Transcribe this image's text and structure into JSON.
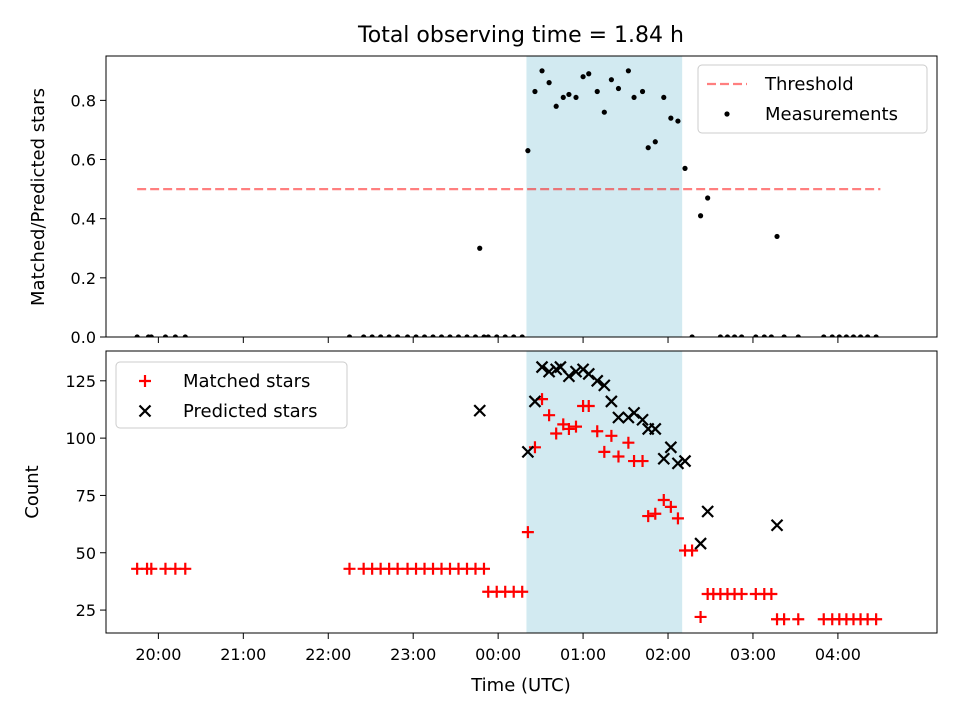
{
  "figure": {
    "title": "Total observing time = 1.84 h",
    "xlabel": "Time (UTC)",
    "x_ticks": [
      "20:00",
      "21:00",
      "22:00",
      "23:00",
      "00:00",
      "01:00",
      "02:00",
      "03:00",
      "04:00"
    ],
    "observing_window": {
      "start": "00:20",
      "end": "02:10",
      "color": "#add8e6"
    }
  },
  "chart_data": [
    {
      "type": "scatter",
      "ylabel": "Matched/Predicted stars",
      "ylim": [
        0,
        0.95
      ],
      "y_ticks": [
        "0.0",
        "0.2",
        "0.4",
        "0.6",
        "0.8"
      ],
      "legend_position": "upper right",
      "threshold": {
        "name": "Threshold",
        "value": 0.5,
        "x_range": [
          "19:45",
          "04:30"
        ],
        "color": "#ff0000",
        "alpha": 0.5,
        "style": "dashed"
      },
      "series": [
        {
          "name": "Measurements",
          "color": "#000000",
          "marker": "dot",
          "points": [
            [
              "19:45",
              0
            ],
            [
              "19:53",
              0
            ],
            [
              "19:55",
              0
            ],
            [
              "20:05",
              0
            ],
            [
              "20:12",
              0
            ],
            [
              "20:19",
              0
            ],
            [
              "22:15",
              0
            ],
            [
              "22:25",
              0
            ],
            [
              "22:31",
              0
            ],
            [
              "22:37",
              0
            ],
            [
              "22:43",
              0
            ],
            [
              "22:49",
              0
            ],
            [
              "22:56",
              0
            ],
            [
              "23:02",
              0
            ],
            [
              "23:08",
              0
            ],
            [
              "23:14",
              0
            ],
            [
              "23:20",
              0
            ],
            [
              "23:26",
              0
            ],
            [
              "23:32",
              0
            ],
            [
              "23:38",
              0
            ],
            [
              "23:44",
              0
            ],
            [
              "23:50",
              0
            ],
            [
              "23:47",
              0.3
            ],
            [
              "23:53",
              0
            ],
            [
              "23:59",
              0
            ],
            [
              "00:05",
              0
            ],
            [
              "00:11",
              0
            ],
            [
              "00:17",
              0
            ],
            [
              "00:21",
              0.63
            ],
            [
              "00:26",
              0.83
            ],
            [
              "00:31",
              0.9
            ],
            [
              "00:36",
              0.86
            ],
            [
              "00:41",
              0.78
            ],
            [
              "00:46",
              0.81
            ],
            [
              "00:50",
              0.82
            ],
            [
              "00:55",
              0.81
            ],
            [
              "01:00",
              0.88
            ],
            [
              "01:04",
              0.89
            ],
            [
              "01:10",
              0.83
            ],
            [
              "01:15",
              0.76
            ],
            [
              "01:20",
              0.87
            ],
            [
              "01:25",
              0.84
            ],
            [
              "01:32",
              0.9
            ],
            [
              "01:36",
              0.81
            ],
            [
              "01:42",
              0.83
            ],
            [
              "01:46",
              0.64
            ],
            [
              "01:51",
              0.66
            ],
            [
              "01:57",
              0.81
            ],
            [
              "02:02",
              0.74
            ],
            [
              "02:07",
              0.73
            ],
            [
              "02:12",
              0.57
            ],
            [
              "02:17",
              0
            ],
            [
              "02:23",
              0.41
            ],
            [
              "02:28",
              0.47
            ],
            [
              "02:37",
              0
            ],
            [
              "02:42",
              0
            ],
            [
              "02:47",
              0
            ],
            [
              "02:52",
              0
            ],
            [
              "03:02",
              0
            ],
            [
              "03:08",
              0
            ],
            [
              "03:13",
              0
            ],
            [
              "03:17",
              0.34
            ],
            [
              "03:22",
              0
            ],
            [
              "03:32",
              0
            ],
            [
              "03:50",
              0
            ],
            [
              "03:56",
              0
            ],
            [
              "04:01",
              0
            ],
            [
              "04:06",
              0
            ],
            [
              "04:11",
              0
            ],
            [
              "04:16",
              0
            ],
            [
              "04:21",
              0
            ],
            [
              "04:27",
              0
            ]
          ]
        }
      ]
    },
    {
      "type": "scatter",
      "ylabel": "Count",
      "ylim": [
        15,
        138
      ],
      "y_ticks": [
        "25",
        "50",
        "75",
        "100",
        "125"
      ],
      "legend_position": "upper left",
      "series": [
        {
          "name": "Matched stars",
          "color": "#ff0000",
          "marker": "plus",
          "points": [
            [
              "19:45",
              43
            ],
            [
              "19:52",
              43
            ],
            [
              "19:55",
              43
            ],
            [
              "20:05",
              43
            ],
            [
              "20:12",
              43
            ],
            [
              "20:19",
              43
            ],
            [
              "22:15",
              43
            ],
            [
              "22:25",
              43
            ],
            [
              "22:31",
              43
            ],
            [
              "22:37",
              43
            ],
            [
              "22:43",
              43
            ],
            [
              "22:49",
              43
            ],
            [
              "22:56",
              43
            ],
            [
              "23:02",
              43
            ],
            [
              "23:08",
              43
            ],
            [
              "23:14",
              43
            ],
            [
              "23:20",
              43
            ],
            [
              "23:26",
              43
            ],
            [
              "23:32",
              43
            ],
            [
              "23:38",
              43
            ],
            [
              "23:44",
              43
            ],
            [
              "23:50",
              43
            ],
            [
              "23:53",
              33
            ],
            [
              "23:59",
              33
            ],
            [
              "00:05",
              33
            ],
            [
              "00:11",
              33
            ],
            [
              "00:17",
              33
            ],
            [
              "00:21",
              59
            ],
            [
              "00:26",
              96
            ],
            [
              "00:31",
              117
            ],
            [
              "00:36",
              110
            ],
            [
              "00:41",
              102
            ],
            [
              "00:46",
              106
            ],
            [
              "00:50",
              104
            ],
            [
              "00:55",
              105
            ],
            [
              "01:00",
              114
            ],
            [
              "01:04",
              114
            ],
            [
              "01:10",
              103
            ],
            [
              "01:15",
              94
            ],
            [
              "01:20",
              101
            ],
            [
              "01:25",
              92
            ],
            [
              "01:32",
              98
            ],
            [
              "01:36",
              90
            ],
            [
              "01:42",
              90
            ],
            [
              "01:46",
              66
            ],
            [
              "01:51",
              67
            ],
            [
              "01:57",
              73
            ],
            [
              "02:02",
              70
            ],
            [
              "02:07",
              65
            ],
            [
              "02:12",
              51
            ],
            [
              "02:17",
              51
            ],
            [
              "02:23",
              22
            ],
            [
              "02:28",
              32
            ],
            [
              "02:32",
              32
            ],
            [
              "02:37",
              32
            ],
            [
              "02:42",
              32
            ],
            [
              "02:47",
              32
            ],
            [
              "02:52",
              32
            ],
            [
              "03:02",
              32
            ],
            [
              "03:08",
              32
            ],
            [
              "03:13",
              32
            ],
            [
              "03:17",
              21
            ],
            [
              "03:22",
              21
            ],
            [
              "03:32",
              21
            ],
            [
              "03:50",
              21
            ],
            [
              "03:56",
              21
            ],
            [
              "04:01",
              21
            ],
            [
              "04:06",
              21
            ],
            [
              "04:11",
              21
            ],
            [
              "04:16",
              21
            ],
            [
              "04:21",
              21
            ],
            [
              "04:27",
              21
            ]
          ]
        },
        {
          "name": "Predicted stars",
          "color": "#000000",
          "marker": "x",
          "points": [
            [
              "23:47",
              112
            ],
            [
              "00:21",
              94
            ],
            [
              "00:26",
              116
            ],
            [
              "00:31",
              131
            ],
            [
              "00:36",
              129
            ],
            [
              "00:41",
              130
            ],
            [
              "00:44",
              131
            ],
            [
              "00:50",
              127
            ],
            [
              "00:55",
              129
            ],
            [
              "01:00",
              130
            ],
            [
              "01:04",
              128
            ],
            [
              "01:10",
              125
            ],
            [
              "01:15",
              123
            ],
            [
              "01:20",
              116
            ],
            [
              "01:25",
              109
            ],
            [
              "01:32",
              109
            ],
            [
              "01:36",
              111
            ],
            [
              "01:42",
              108
            ],
            [
              "01:46",
              104
            ],
            [
              "01:51",
              104
            ],
            [
              "01:57",
              91
            ],
            [
              "02:02",
              96
            ],
            [
              "02:07",
              89
            ],
            [
              "02:12",
              90
            ],
            [
              "02:23",
              54
            ],
            [
              "02:28",
              68
            ],
            [
              "03:17",
              62
            ]
          ]
        }
      ]
    }
  ]
}
